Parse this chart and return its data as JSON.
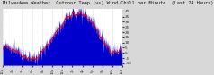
{
  "title": "Milwaukee Weather  Outdoor Temp (vs) Wind Chill per Minute  (Last 24 Hours)",
  "title_fontsize": 3.8,
  "bg_color": "#d8d8d8",
  "plot_bg_color": "#ffffff",
  "line_color_red": "#ff0000",
  "fill_color_blue": "#0000cc",
  "ylim": [
    -12,
    42
  ],
  "yticks": [
    40,
    35,
    30,
    25,
    20,
    15,
    10,
    5,
    0,
    -5,
    -10
  ],
  "ytick_labels": [
    "40",
    "35",
    "30",
    "25",
    "20",
    "15",
    "10",
    "5",
    "0",
    "-5",
    "-10"
  ],
  "ytick_fontsize": 3.2,
  "xtick_fontsize": 2.8,
  "grid_color": "#bbbbbb",
  "num_points": 1440,
  "x_num_ticks": 12
}
